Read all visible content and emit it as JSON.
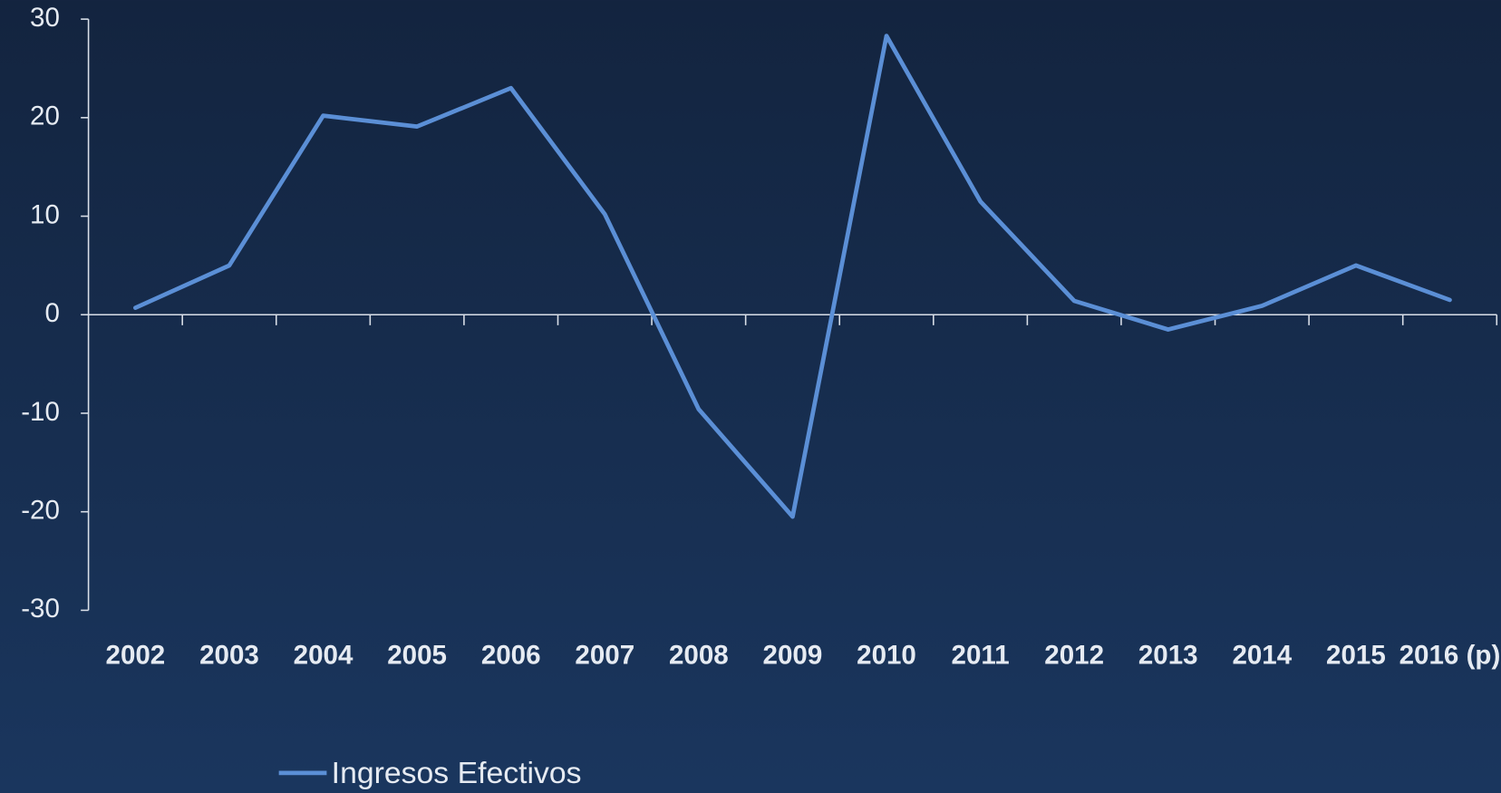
{
  "chart_data": {
    "type": "line",
    "categories": [
      "2002",
      "2003",
      "2004",
      "2005",
      "2006",
      "2007",
      "2008",
      "2009",
      "2010",
      "2011",
      "2012",
      "2013",
      "2014",
      "2015",
      "2016 (p)"
    ],
    "series": [
      {
        "name": "Ingresos Efectivos",
        "color": "#5b8fd6",
        "values": [
          0.7,
          5.0,
          20.2,
          19.1,
          23.0,
          10.2,
          -9.6,
          -20.5,
          28.3,
          11.5,
          1.4,
          -1.5,
          0.9,
          5.0,
          1.5
        ]
      }
    ],
    "ylim": [
      -30,
      30
    ],
    "yticks": [
      -30,
      -20,
      -10,
      0,
      10,
      20,
      30
    ]
  }
}
